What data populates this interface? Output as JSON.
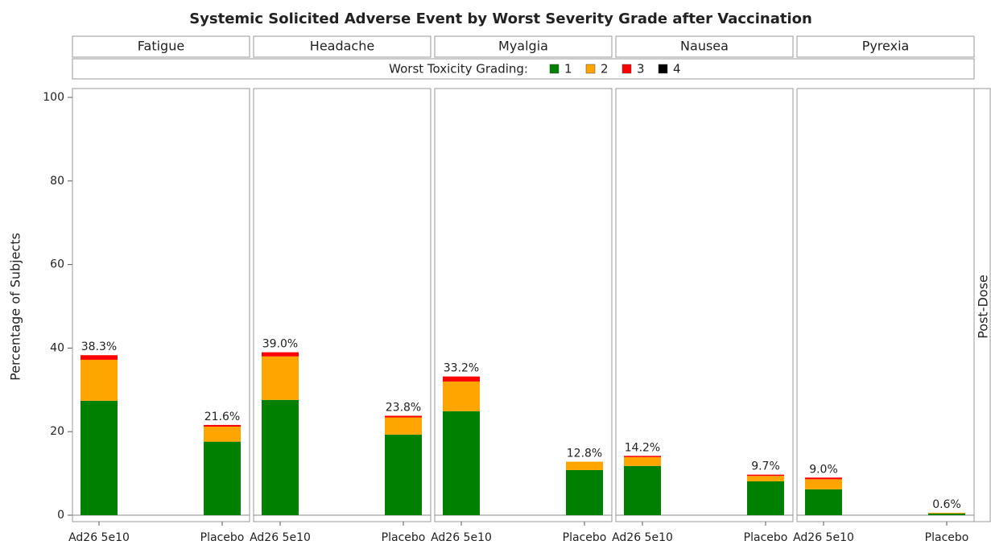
{
  "chart_data": {
    "type": "stacked_bar",
    "title": "Systemic Solicited Adverse Event by Worst Severity Grade after Vaccination",
    "ylabel": "Percentage of Subjects",
    "row_label": "Post-Dose",
    "legend_title": "Worst Toxicity Grading:",
    "categories": [
      "Ad26 5e10",
      "Placebo"
    ],
    "ylim": [
      0,
      100
    ],
    "yticks": [
      0,
      20,
      40,
      60,
      80,
      100
    ],
    "series": [
      {
        "name": "1",
        "color": "#008000"
      },
      {
        "name": "2",
        "color": "#ffa500"
      },
      {
        "name": "3",
        "color": "#ff0000"
      },
      {
        "name": "4",
        "color": "#000000"
      }
    ],
    "panels": [
      {
        "name": "Fatigue",
        "series": [
          {
            "values": [
              27.4,
              17.6
            ]
          },
          {
            "values": [
              9.8,
              3.6
            ]
          },
          {
            "values": [
              1.1,
              0.4
            ]
          },
          {
            "values": [
              0,
              0
            ]
          }
        ],
        "total": {
          "values": [
            38.3,
            21.6
          ],
          "value_labels": [
            "38.3%",
            "21.6%"
          ]
        }
      },
      {
        "name": "Headache",
        "series": [
          {
            "values": [
              27.6,
              19.3
            ]
          },
          {
            "values": [
              10.4,
              4.1
            ]
          },
          {
            "values": [
              1.0,
              0.4
            ]
          },
          {
            "values": [
              0,
              0
            ]
          }
        ],
        "total": {
          "values": [
            39.0,
            23.8
          ],
          "value_labels": [
            "39.0%",
            "23.8%"
          ]
        }
      },
      {
        "name": "Myalgia",
        "series": [
          {
            "values": [
              24.9,
              10.8
            ]
          },
          {
            "values": [
              7.1,
              2.0
            ]
          },
          {
            "values": [
              1.2,
              0
            ]
          },
          {
            "values": [
              0,
              0
            ]
          }
        ],
        "total": {
          "values": [
            33.2,
            12.8
          ],
          "value_labels": [
            "33.2%",
            "12.8%"
          ]
        }
      },
      {
        "name": "Nausea",
        "series": [
          {
            "values": [
              11.8,
              8.1
            ]
          },
          {
            "values": [
              2.1,
              1.3
            ]
          },
          {
            "values": [
              0.3,
              0.3
            ]
          },
          {
            "values": [
              0,
              0
            ]
          }
        ],
        "total": {
          "values": [
            14.2,
            9.7
          ],
          "value_labels": [
            "14.2%",
            "9.7%"
          ]
        }
      },
      {
        "name": "Pyrexia",
        "series": [
          {
            "values": [
              6.2,
              0.4
            ]
          },
          {
            "values": [
              2.4,
              0.2
            ]
          },
          {
            "values": [
              0.4,
              0
            ]
          },
          {
            "values": [
              0,
              0
            ]
          }
        ],
        "total": {
          "values": [
            9.0,
            0.6
          ],
          "value_labels": [
            "9.0%",
            "0.6%"
          ]
        }
      }
    ]
  }
}
